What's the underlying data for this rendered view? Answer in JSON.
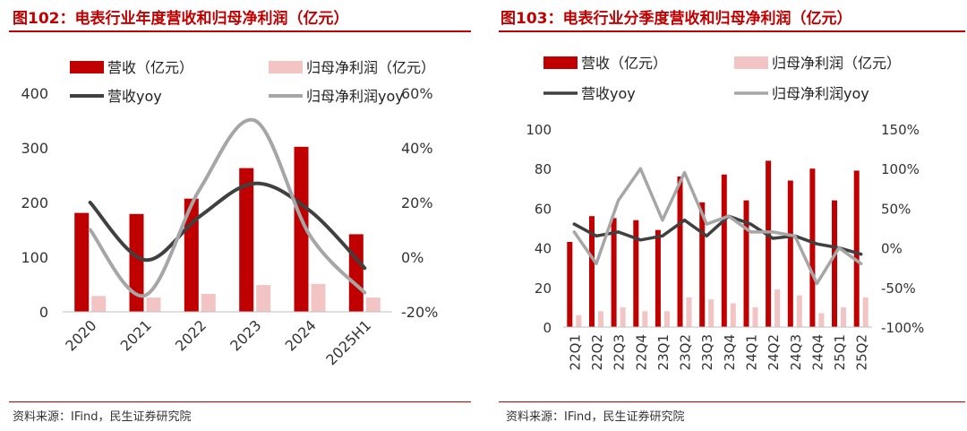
{
  "colors": {
    "revenue_bar": "#c00000",
    "profit_bar": "#f2c4c4",
    "revenue_yoy": "#404040",
    "profit_yoy": "#a6a6a6",
    "title": "#c00000"
  },
  "panel1": {
    "title": "图102：电表行业年度营收和归母净利润（亿元）",
    "source": "资料来源：IFind，民生证券研究院"
  },
  "panel2": {
    "title": "图103：电表行业分季度营收和归母净利润（亿元）",
    "source": "资料来源：IFind，民生证券研究院"
  },
  "chart_data": [
    {
      "type": "bar",
      "title": "电表行业年度营收和归母净利润（亿元）",
      "categories": [
        "2020",
        "2021",
        "2022",
        "2023",
        "2024",
        "2025H1"
      ],
      "series": [
        {
          "name": "营收（亿元）",
          "type": "bar",
          "axis": "left",
          "values": [
            181,
            179,
            207,
            263,
            302,
            142
          ]
        },
        {
          "name": "归母净利润（亿元）",
          "type": "bar",
          "axis": "left",
          "values": [
            29,
            26,
            33,
            49,
            51,
            26
          ]
        },
        {
          "name": "营收yoy",
          "type": "line",
          "axis": "right",
          "values": [
            20,
            -1,
            15,
            27,
            17,
            -4
          ]
        },
        {
          "name": "归母净利润yoy",
          "type": "line",
          "axis": "right",
          "values": [
            10,
            -14,
            25,
            50,
            8,
            -13
          ]
        }
      ],
      "ylim_left": [
        0,
        400
      ],
      "yticks_left": [
        "0",
        "100",
        "200",
        "300",
        "400"
      ],
      "ylim_right": [
        -20,
        60
      ],
      "yticks_right": [
        "-20%",
        "0%",
        "20%",
        "40%",
        "60%"
      ],
      "legend": [
        "营收（亿元）",
        "归母净利润（亿元）",
        "营收yoy",
        "归母净利润yoy"
      ],
      "legend_position": "top"
    },
    {
      "type": "bar",
      "title": "电表行业分季度营收和归母净利润（亿元）",
      "categories": [
        "22Q1",
        "22Q2",
        "22Q3",
        "22Q4",
        "23Q1",
        "23Q2",
        "23Q3",
        "23Q4",
        "24Q1",
        "24Q2",
        "24Q3",
        "24Q4",
        "25Q1",
        "25Q2"
      ],
      "series": [
        {
          "name": "营收（亿元）",
          "type": "bar",
          "axis": "left",
          "values": [
            43,
            56,
            55,
            54,
            49,
            76,
            63,
            77,
            64,
            84,
            74,
            80,
            64,
            79
          ]
        },
        {
          "name": "归母净利润（亿元）",
          "type": "bar",
          "axis": "left",
          "values": [
            6,
            8,
            10,
            8,
            8,
            15,
            14,
            12,
            10,
            19,
            16,
            7,
            10,
            15
          ]
        },
        {
          "name": "营收yoy",
          "type": "line",
          "axis": "right",
          "values": [
            30,
            15,
            20,
            10,
            15,
            35,
            15,
            40,
            30,
            12,
            15,
            5,
            0,
            -8
          ]
        },
        {
          "name": "归母净利润yoy",
          "type": "line",
          "axis": "right",
          "values": [
            20,
            -20,
            60,
            100,
            35,
            95,
            30,
            40,
            20,
            20,
            15,
            -45,
            0,
            -20
          ]
        }
      ],
      "ylim_left": [
        0,
        100
      ],
      "yticks_left": [
        "0",
        "20",
        "40",
        "60",
        "80",
        "100"
      ],
      "ylim_right": [
        -100,
        150
      ],
      "yticks_right": [
        "-100%",
        "-50%",
        "0%",
        "50%",
        "100%",
        "150%"
      ],
      "legend": [
        "营收（亿元）",
        "归母净利润（亿元）",
        "营收yoy",
        "归母净利润yoy"
      ],
      "legend_position": "top"
    }
  ]
}
